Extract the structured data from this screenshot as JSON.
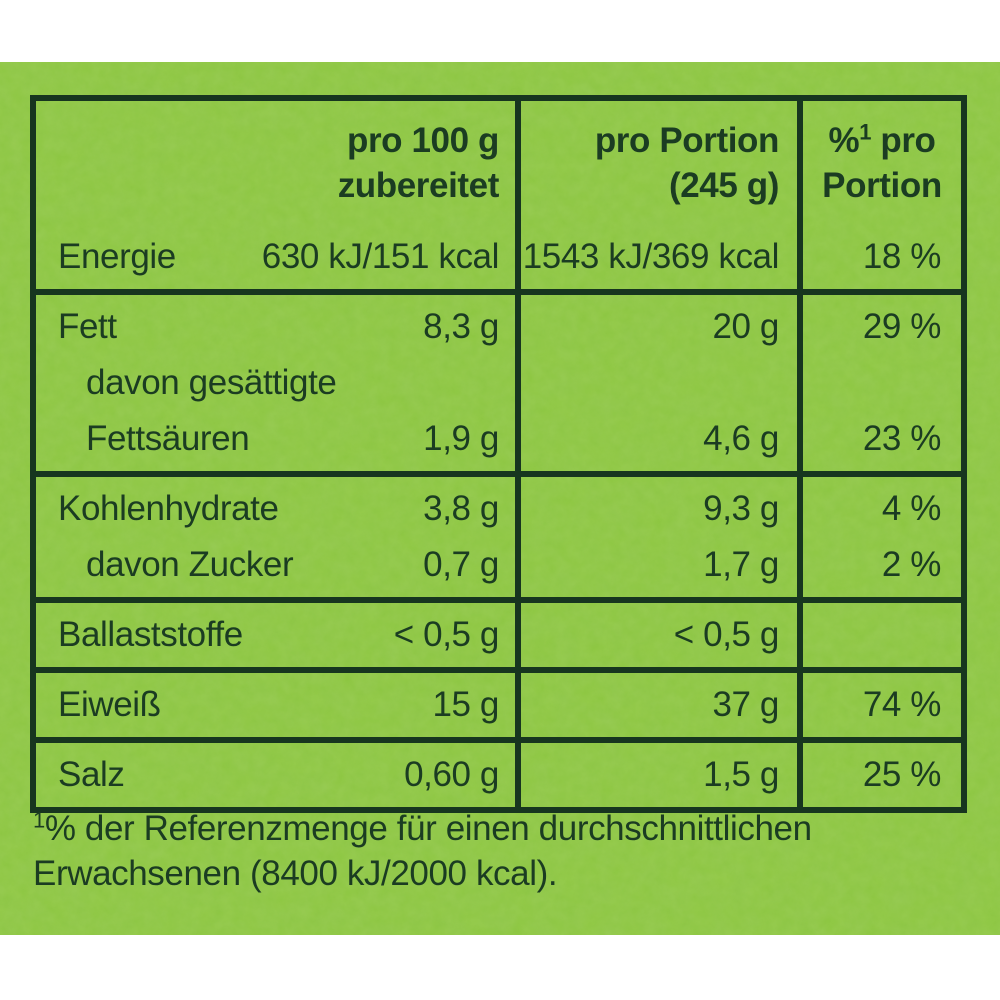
{
  "colors": {
    "background_green": "#8cc63f",
    "dark_green_text": "#1b3c22",
    "dark_green_border": "#17351f",
    "page_white": "#ffffff"
  },
  "table": {
    "header": {
      "col1_line1": "pro 100 g",
      "col1_line2": "zubereitet",
      "col2_line1": "pro Portion",
      "col2_line2": "(245 g)",
      "col3_percent_sign": "%",
      "col3_sup": "1",
      "col3_after_sup": " pro",
      "col3_line2": "Portion"
    },
    "rows": [
      {
        "lines": [
          {
            "label": "Energie",
            "indent": false,
            "v1": "630 kJ/151 kcal",
            "v2": "1543 kJ/369 kcal",
            "v3": "18 %"
          }
        ]
      },
      {
        "lines": [
          {
            "label": "Fett",
            "indent": false,
            "v1": "8,3 g",
            "v2": "20 g",
            "v3": "29 %"
          },
          {
            "label": "davon gesättigte",
            "indent": true,
            "v1": "",
            "v2": "",
            "v3": ""
          },
          {
            "label": "Fettsäuren",
            "indent": true,
            "v1": "1,9 g",
            "v2": "4,6 g",
            "v3": "23 %"
          }
        ]
      },
      {
        "lines": [
          {
            "label": "Kohlenhydrate",
            "indent": false,
            "v1": "3,8 g",
            "v2": "9,3 g",
            "v3": "4 %"
          },
          {
            "label": "davon Zucker",
            "indent": true,
            "v1": "0,7 g",
            "v2": "1,7 g",
            "v3": "2 %"
          }
        ]
      },
      {
        "lines": [
          {
            "label": "Ballaststoffe",
            "indent": false,
            "v1": "< 0,5 g",
            "v2": "< 0,5 g",
            "v3": ""
          }
        ]
      },
      {
        "lines": [
          {
            "label": "Eiweiß",
            "indent": false,
            "v1": "15 g",
            "v2": "37 g",
            "v3": "74 %"
          }
        ]
      },
      {
        "lines": [
          {
            "label": "Salz",
            "indent": false,
            "v1": "0,60 g",
            "v2": "1,5 g",
            "v3": "25 %"
          }
        ]
      }
    ]
  },
  "footnote": {
    "sup": "1",
    "line1": "% der Referenzmenge für einen durchschnittlichen",
    "line2": "Erwachsenen (8400 kJ/2000 kcal)."
  }
}
